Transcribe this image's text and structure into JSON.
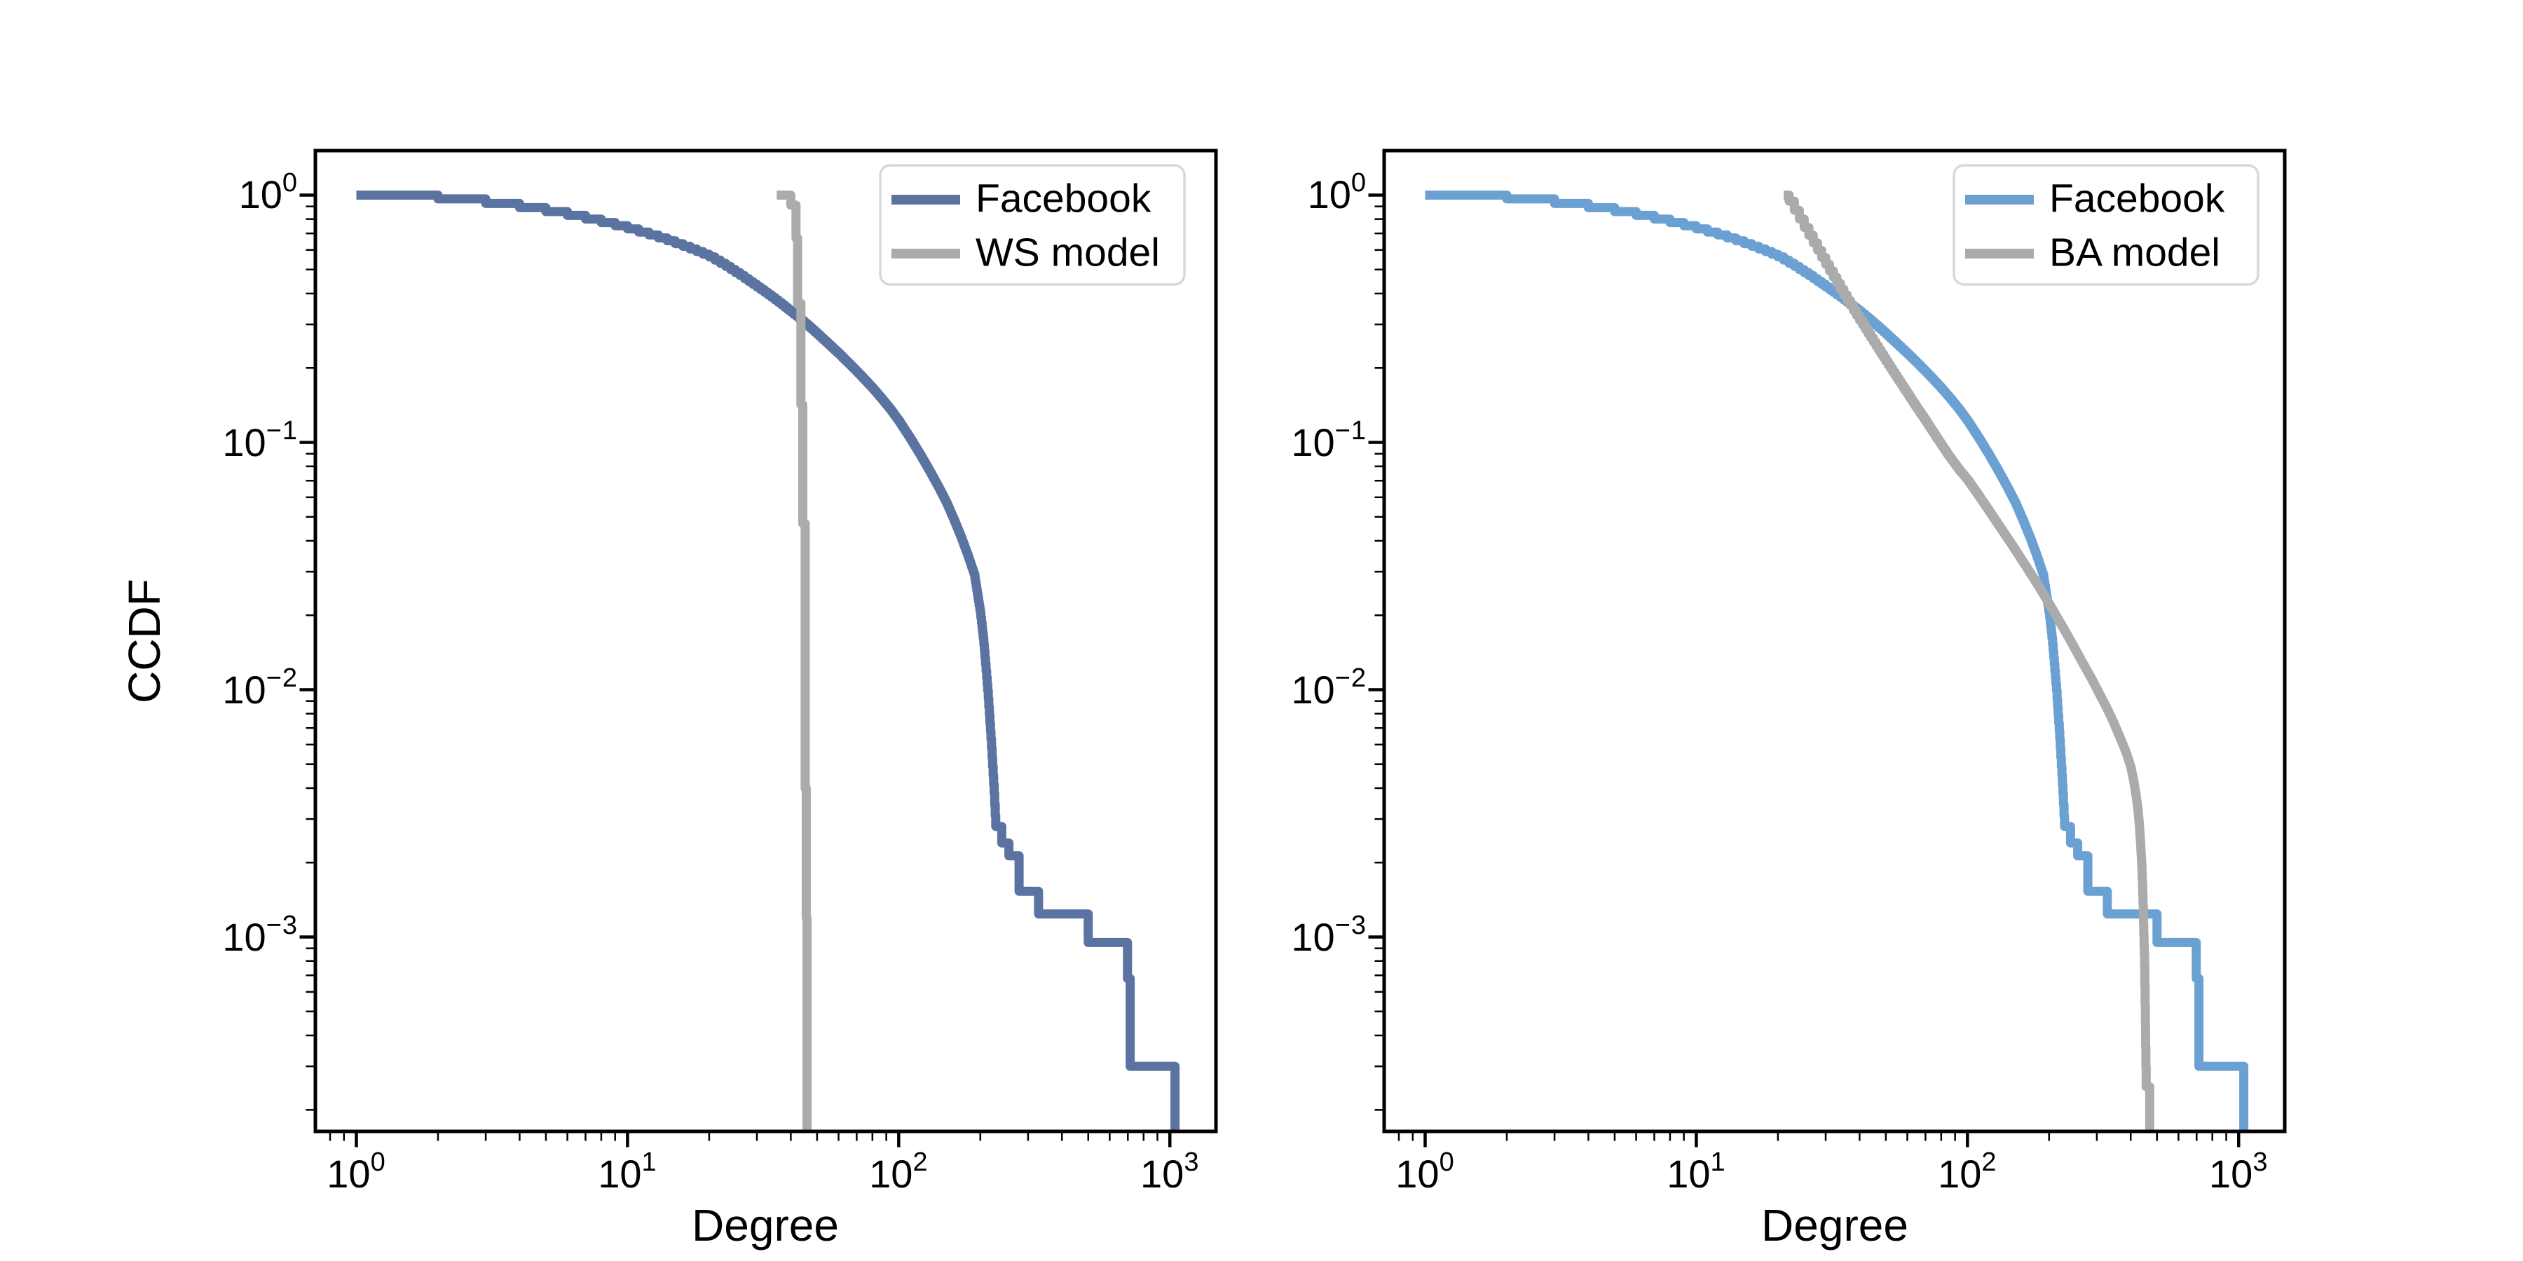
{
  "figure": {
    "background": "#ffffff",
    "text_color": "#000000"
  },
  "chart_data": [
    {
      "type": "line",
      "panel": "left",
      "title": "",
      "xlabel": "Degree",
      "ylabel": "CCDF",
      "xscale": "log",
      "yscale": "log",
      "grid": false,
      "legend_position": "upper right",
      "xlim": [
        0.706,
        1479
      ],
      "ylim": [
        0.0001637,
        1.513
      ],
      "x_ticks": [
        {
          "value": 1,
          "base": "10",
          "exp": "0"
        },
        {
          "value": 10,
          "base": "10",
          "exp": "1"
        },
        {
          "value": 100,
          "base": "10",
          "exp": "2"
        },
        {
          "value": 1000,
          "base": "10",
          "exp": "3"
        }
      ],
      "y_ticks": [
        {
          "value": 1,
          "base": "10",
          "exp": "0"
        },
        {
          "value": 0.1,
          "base": "10",
          "exp": "−1"
        },
        {
          "value": 0.01,
          "base": "10",
          "exp": "−2"
        },
        {
          "value": 0.001,
          "base": "10",
          "exp": "−3"
        }
      ],
      "series": [
        {
          "name": "Facebook",
          "color": "#5a73a0",
          "line_width": 13,
          "points": [
            [
              1,
              1.0
            ],
            [
              2,
              0.965
            ],
            [
              3,
              0.925
            ],
            [
              4,
              0.89
            ],
            [
              5,
              0.858
            ],
            [
              6,
              0.828
            ],
            [
              7,
              0.8
            ],
            [
              8,
              0.775
            ],
            [
              9,
              0.752
            ],
            [
              10,
              0.73
            ],
            [
              12,
              0.69
            ],
            [
              14,
              0.654
            ],
            [
              16,
              0.621
            ],
            [
              18,
              0.591
            ],
            [
              20,
              0.563
            ],
            [
              23,
              0.515
            ],
            [
              26,
              0.473
            ],
            [
              30,
              0.425
            ],
            [
              34,
              0.386
            ],
            [
              38,
              0.352
            ],
            [
              42,
              0.323
            ],
            [
              46,
              0.297
            ],
            [
              50,
              0.274
            ],
            [
              55,
              0.249
            ],
            [
              60,
              0.228
            ],
            [
              66,
              0.206
            ],
            [
              72,
              0.187
            ],
            [
              79,
              0.168
            ],
            [
              86,
              0.151
            ],
            [
              93,
              0.136
            ],
            [
              100,
              0.122
            ],
            [
              110,
              0.104
            ],
            [
              120,
              0.089
            ],
            [
              130,
              0.0765
            ],
            [
              140,
              0.066
            ],
            [
              150,
              0.057
            ],
            [
              160,
              0.0485
            ],
            [
              170,
              0.0412
            ],
            [
              180,
              0.0348
            ],
            [
              190,
              0.0292
            ],
            [
              200,
              0.0205
            ],
            [
              205,
              0.0162
            ],
            [
              209,
              0.0127
            ],
            [
              213,
              0.0099
            ],
            [
              216,
              0.0079
            ],
            [
              219,
              0.0063
            ],
            [
              222,
              0.0049
            ],
            [
              225,
              0.0038
            ],
            [
              228,
              0.0028
            ],
            [
              240,
              0.0028
            ],
            [
              240,
              0.0024
            ],
            [
              255,
              0.0024
            ],
            [
              255,
              0.00213
            ],
            [
              278,
              0.00213
            ],
            [
              278,
              0.00153
            ],
            [
              328,
              0.00153
            ],
            [
              328,
              0.00124
            ],
            [
              500,
              0.00124
            ],
            [
              500,
              0.00095
            ],
            [
              698,
              0.00095
            ],
            [
              698,
              0.00068
            ],
            [
              714,
              0.00068
            ],
            [
              714,
              0.0003
            ],
            [
              1045,
              0.0003
            ],
            [
              1045,
              0.00012
            ]
          ]
        },
        {
          "name": "WS model",
          "color": "#ababab",
          "line_width": 13,
          "points": [
            [
              35.5,
              1.0
            ],
            [
              40,
              1.0
            ],
            [
              40,
              0.91
            ],
            [
              41.8,
              0.91
            ],
            [
              41.8,
              0.67
            ],
            [
              42.4,
              0.67
            ],
            [
              42.4,
              0.365
            ],
            [
              43.6,
              0.365
            ],
            [
              43.6,
              0.142
            ],
            [
              44.3,
              0.142
            ],
            [
              44.3,
              0.047
            ],
            [
              45.2,
              0.047
            ],
            [
              45.2,
              0.004
            ],
            [
              45.6,
              0.004
            ],
            [
              45.6,
              0.0012
            ],
            [
              45.9,
              0.0012
            ],
            [
              45.9,
              0.00012
            ]
          ]
        }
      ]
    },
    {
      "type": "line",
      "panel": "right",
      "title": "",
      "xlabel": "Degree",
      "ylabel": "",
      "xscale": "log",
      "yscale": "log",
      "grid": false,
      "legend_position": "upper right",
      "xlim": [
        0.706,
        1479
      ],
      "ylim": [
        0.0001637,
        1.513
      ],
      "x_ticks": [
        {
          "value": 1,
          "base": "10",
          "exp": "0"
        },
        {
          "value": 10,
          "base": "10",
          "exp": "1"
        },
        {
          "value": 100,
          "base": "10",
          "exp": "2"
        },
        {
          "value": 1000,
          "base": "10",
          "exp": "3"
        }
      ],
      "y_ticks": [
        {
          "value": 1,
          "base": "10",
          "exp": "0"
        },
        {
          "value": 0.1,
          "base": "10",
          "exp": "−1"
        },
        {
          "value": 0.01,
          "base": "10",
          "exp": "−2"
        },
        {
          "value": 0.001,
          "base": "10",
          "exp": "−3"
        }
      ],
      "series": [
        {
          "name": "Facebook",
          "color": "#6ba1d2",
          "line_width": 13,
          "points": [
            [
              1,
              1.0
            ],
            [
              2,
              0.965
            ],
            [
              3,
              0.925
            ],
            [
              4,
              0.89
            ],
            [
              5,
              0.858
            ],
            [
              6,
              0.828
            ],
            [
              7,
              0.8
            ],
            [
              8,
              0.775
            ],
            [
              9,
              0.752
            ],
            [
              10,
              0.73
            ],
            [
              12,
              0.69
            ],
            [
              14,
              0.654
            ],
            [
              16,
              0.621
            ],
            [
              18,
              0.591
            ],
            [
              20,
              0.563
            ],
            [
              23,
              0.515
            ],
            [
              26,
              0.473
            ],
            [
              30,
              0.425
            ],
            [
              34,
              0.386
            ],
            [
              38,
              0.352
            ],
            [
              42,
              0.323
            ],
            [
              46,
              0.297
            ],
            [
              50,
              0.274
            ],
            [
              55,
              0.249
            ],
            [
              60,
              0.228
            ],
            [
              66,
              0.206
            ],
            [
              72,
              0.187
            ],
            [
              79,
              0.168
            ],
            [
              86,
              0.151
            ],
            [
              93,
              0.136
            ],
            [
              100,
              0.122
            ],
            [
              110,
              0.104
            ],
            [
              120,
              0.089
            ],
            [
              130,
              0.0765
            ],
            [
              140,
              0.066
            ],
            [
              150,
              0.057
            ],
            [
              160,
              0.0485
            ],
            [
              170,
              0.0412
            ],
            [
              180,
              0.0348
            ],
            [
              190,
              0.0292
            ],
            [
              200,
              0.0205
            ],
            [
              205,
              0.0162
            ],
            [
              209,
              0.0127
            ],
            [
              213,
              0.0099
            ],
            [
              216,
              0.0079
            ],
            [
              219,
              0.0063
            ],
            [
              222,
              0.0049
            ],
            [
              225,
              0.0038
            ],
            [
              228,
              0.0028
            ],
            [
              240,
              0.0028
            ],
            [
              240,
              0.0024
            ],
            [
              255,
              0.0024
            ],
            [
              255,
              0.00213
            ],
            [
              278,
              0.00213
            ],
            [
              278,
              0.00153
            ],
            [
              328,
              0.00153
            ],
            [
              328,
              0.00124
            ],
            [
              500,
              0.00124
            ],
            [
              500,
              0.00095
            ],
            [
              698,
              0.00095
            ],
            [
              698,
              0.00068
            ],
            [
              714,
              0.00068
            ],
            [
              714,
              0.0003
            ],
            [
              1045,
              0.0003
            ],
            [
              1045,
              0.00012
            ]
          ]
        },
        {
          "name": "BA model",
          "color": "#ababab",
          "line_width": 13,
          "points": [
            [
              21,
              1.0
            ],
            [
              22,
              1.0
            ],
            [
              22,
              0.945
            ],
            [
              23,
              0.868
            ],
            [
              24,
              0.8
            ],
            [
              25,
              0.74
            ],
            [
              26,
              0.688
            ],
            [
              28,
              0.598
            ],
            [
              30,
              0.525
            ],
            [
              33,
              0.44
            ],
            [
              36,
              0.375
            ],
            [
              40,
              0.312
            ],
            [
              44,
              0.265
            ],
            [
              48,
              0.228
            ],
            [
              53,
              0.193
            ],
            [
              58,
              0.166
            ],
            [
              64,
              0.141
            ],
            [
              70,
              0.122
            ],
            [
              77,
              0.104
            ],
            [
              85,
              0.0885
            ],
            [
              93,
              0.0775
            ],
            [
              100,
              0.0705
            ],
            [
              110,
              0.0607
            ],
            [
              120,
              0.0528
            ],
            [
              132,
              0.0452
            ],
            [
              145,
              0.0388
            ],
            [
              158,
              0.0336
            ],
            [
              172,
              0.0291
            ],
            [
              188,
              0.0249
            ],
            [
              205,
              0.0212
            ],
            [
              225,
              0.0178
            ],
            [
              245,
              0.0151
            ],
            [
              265,
              0.0129
            ],
            [
              285,
              0.0112
            ],
            [
              305,
              0.0097
            ],
            [
              325,
              0.0085
            ],
            [
              345,
              0.0074
            ],
            [
              365,
              0.0064
            ],
            [
              385,
              0.00555
            ],
            [
              400,
              0.00487
            ],
            [
              410,
              0.00428
            ],
            [
              418,
              0.00375
            ],
            [
              425,
              0.00327
            ],
            [
              430,
              0.00285
            ],
            [
              435,
              0.00235
            ],
            [
              439,
              0.00195
            ],
            [
              442,
              0.00162
            ],
            [
              444,
              0.00135
            ],
            [
              446,
              0.00112
            ],
            [
              448,
              0.00093
            ],
            [
              450,
              0.00077
            ],
            [
              451,
              0.00064
            ],
            [
              452,
              0.00053
            ],
            [
              453,
              0.00044
            ],
            [
              454,
              0.00036
            ],
            [
              455,
              0.0003
            ],
            [
              456,
              0.000248
            ],
            [
              470,
              0.000248
            ],
            [
              470,
              0.00012
            ]
          ]
        }
      ]
    }
  ]
}
